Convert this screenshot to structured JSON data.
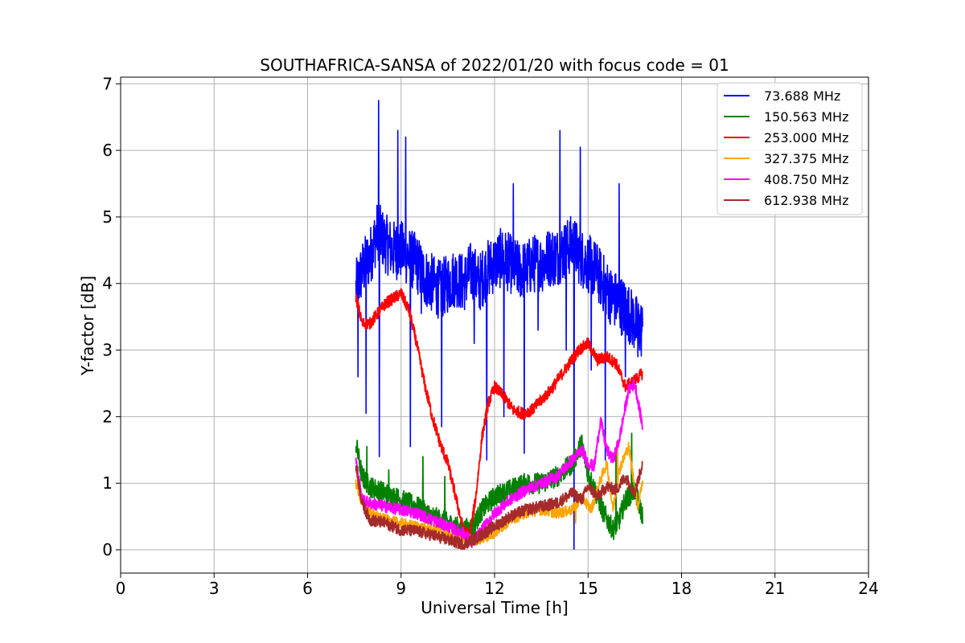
{
  "chart_data": {
    "type": "line",
    "title": "SOUTHAFRICA-SANSA of 2022/01/20 with focus code = 01",
    "xlabel": "Universal Time [h]",
    "ylabel": "Y-factor [dB]",
    "xlim": [
      0,
      24
    ],
    "ylim": [
      -0.35,
      7.1
    ],
    "xticks": [
      0,
      3,
      6,
      9,
      12,
      15,
      18,
      21,
      24
    ],
    "yticks": [
      0,
      1,
      2,
      3,
      4,
      5,
      6,
      7
    ],
    "grid": true,
    "legend_position": "top-right",
    "series": [
      {
        "name": " 73.688 MHz",
        "color": "#0000ff",
        "x": [
          7.55,
          7.75,
          8.0,
          8.25,
          8.5,
          8.75,
          9.0,
          9.25,
          9.5,
          9.75,
          10.0,
          10.25,
          10.5,
          10.75,
          11.0,
          11.25,
          11.5,
          11.75,
          12.0,
          12.25,
          12.5,
          12.75,
          13.0,
          13.25,
          13.5,
          13.75,
          14.0,
          14.25,
          14.5,
          14.75,
          15.0,
          15.25,
          15.5,
          15.75,
          16.0,
          16.25,
          16.5,
          16.75
        ],
        "values": [
          3.9,
          4.2,
          4.4,
          4.8,
          4.6,
          4.5,
          4.5,
          4.4,
          4.3,
          4.1,
          4.0,
          3.9,
          4.0,
          4.1,
          4.0,
          4.2,
          4.0,
          4.2,
          4.3,
          4.4,
          4.3,
          4.2,
          4.2,
          4.3,
          4.3,
          4.4,
          4.4,
          4.5,
          4.6,
          4.4,
          4.3,
          4.2,
          4.0,
          3.8,
          3.7,
          3.6,
          3.4,
          3.3
        ],
        "noise": 0.45,
        "spikes": [
          [
            7.62,
            2.6
          ],
          [
            7.88,
            2.05
          ],
          [
            8.3,
            1.4
          ],
          [
            9.3,
            1.55
          ],
          [
            9.65,
            3.55
          ],
          [
            10.3,
            1.85
          ],
          [
            11.35,
            3.1
          ],
          [
            11.75,
            1.35
          ],
          [
            12.3,
            2.0
          ],
          [
            12.95,
            1.45
          ],
          [
            13.4,
            3.3
          ],
          [
            14.55,
            0.0
          ],
          [
            14.3,
            3.0
          ],
          [
            15.1,
            2.7
          ],
          [
            15.55,
            1.35
          ],
          [
            16.2,
            2.6
          ],
          [
            16.6,
            2.9
          ],
          [
            8.28,
            6.75
          ],
          [
            8.9,
            6.3
          ],
          [
            9.15,
            6.2
          ],
          [
            12.6,
            5.5
          ],
          [
            14.1,
            6.3
          ],
          [
            14.75,
            6.05
          ],
          [
            16.0,
            5.5
          ]
        ]
      },
      {
        "name": "150.563 MHz",
        "color": "#008000",
        "x": [
          7.55,
          7.75,
          8.0,
          8.5,
          9.0,
          9.5,
          10.0,
          10.5,
          11.0,
          11.3,
          11.6,
          12.0,
          12.5,
          13.0,
          13.5,
          14.0,
          14.5,
          14.8,
          15.0,
          15.3,
          15.5,
          15.8,
          16.0,
          16.2,
          16.5,
          16.75
        ],
        "values": [
          1.6,
          1.1,
          0.95,
          0.85,
          0.75,
          0.65,
          0.5,
          0.4,
          0.3,
          0.35,
          0.6,
          0.8,
          0.9,
          1.0,
          1.0,
          1.1,
          1.3,
          1.6,
          1.15,
          0.8,
          0.55,
          0.3,
          0.45,
          0.75,
          0.9,
          0.5
        ],
        "noise": 0.16,
        "spikes": [
          [
            7.9,
            1.55
          ],
          [
            8.6,
            1.2
          ],
          [
            9.7,
            1.4
          ],
          [
            10.4,
            1.1
          ],
          [
            16.4,
            1.75
          ],
          [
            15.9,
            1.5
          ]
        ]
      },
      {
        "name": "253.000 MHz",
        "color": "#ff0000",
        "x": [
          7.55,
          7.75,
          8.0,
          8.5,
          9.0,
          9.25,
          9.5,
          9.75,
          10.0,
          10.25,
          10.5,
          10.75,
          11.0,
          11.2,
          11.4,
          11.6,
          11.8,
          12.0,
          12.3,
          12.6,
          12.9,
          13.2,
          13.5,
          13.8,
          14.1,
          14.4,
          14.7,
          15.0,
          15.3,
          15.6,
          15.9,
          16.2,
          16.5,
          16.75
        ],
        "values": [
          3.8,
          3.4,
          3.4,
          3.7,
          3.85,
          3.6,
          3.1,
          2.5,
          2.0,
          1.6,
          1.3,
          0.8,
          0.3,
          0.2,
          0.8,
          1.7,
          2.2,
          2.45,
          2.3,
          2.1,
          2.05,
          2.1,
          2.25,
          2.4,
          2.6,
          2.8,
          3.0,
          3.1,
          2.85,
          2.9,
          2.8,
          2.45,
          2.55,
          2.65
        ],
        "noise": 0.09,
        "spikes": []
      },
      {
        "name": "327.375 MHz",
        "color": "#ffa500",
        "x": [
          7.55,
          7.75,
          8.0,
          8.5,
          9.0,
          9.5,
          10.0,
          10.5,
          11.0,
          11.5,
          12.0,
          12.5,
          13.0,
          13.5,
          14.0,
          14.5,
          14.8,
          15.1,
          15.4,
          15.6,
          15.8,
          16.0,
          16.3,
          16.6,
          16.75
        ],
        "values": [
          1.0,
          0.7,
          0.55,
          0.45,
          0.4,
          0.35,
          0.3,
          0.22,
          0.15,
          0.15,
          0.25,
          0.45,
          0.55,
          0.6,
          0.55,
          0.6,
          0.8,
          0.6,
          1.05,
          1.3,
          0.6,
          1.2,
          1.55,
          0.65,
          1.05
        ],
        "noise": 0.08,
        "spikes": [
          [
            14.6,
            0.4
          ],
          [
            15.95,
            1.65
          ]
        ]
      },
      {
        "name": "408.750 MHz",
        "color": "#ff00ff",
        "x": [
          7.55,
          7.75,
          8.0,
          8.5,
          9.0,
          9.5,
          10.0,
          10.5,
          11.0,
          11.3,
          11.6,
          12.0,
          12.5,
          13.0,
          13.5,
          14.0,
          14.5,
          14.8,
          15.0,
          15.2,
          15.4,
          15.6,
          15.8,
          16.0,
          16.3,
          16.5,
          16.75
        ],
        "values": [
          1.35,
          0.75,
          0.7,
          0.65,
          0.6,
          0.55,
          0.45,
          0.35,
          0.25,
          0.1,
          0.3,
          0.55,
          0.75,
          0.9,
          1.0,
          1.1,
          1.35,
          1.5,
          1.3,
          1.25,
          1.95,
          1.5,
          1.35,
          1.65,
          2.4,
          2.5,
          1.85
        ],
        "noise": 0.09,
        "spikes": []
      },
      {
        "name": "612.938 MHz",
        "color": "#a52a2a",
        "x": [
          7.55,
          7.75,
          8.0,
          8.5,
          9.0,
          9.5,
          10.0,
          10.5,
          11.0,
          11.5,
          12.0,
          12.5,
          13.0,
          13.5,
          14.0,
          14.5,
          14.8,
          15.0,
          15.3,
          15.6,
          15.9,
          16.2,
          16.5,
          16.75
        ],
        "values": [
          1.25,
          0.7,
          0.45,
          0.4,
          0.3,
          0.28,
          0.22,
          0.15,
          0.08,
          0.2,
          0.35,
          0.5,
          0.6,
          0.65,
          0.7,
          0.85,
          0.75,
          0.95,
          0.8,
          0.95,
          0.9,
          1.1,
          0.85,
          1.3
        ],
        "noise": 0.09,
        "spikes": []
      }
    ]
  }
}
